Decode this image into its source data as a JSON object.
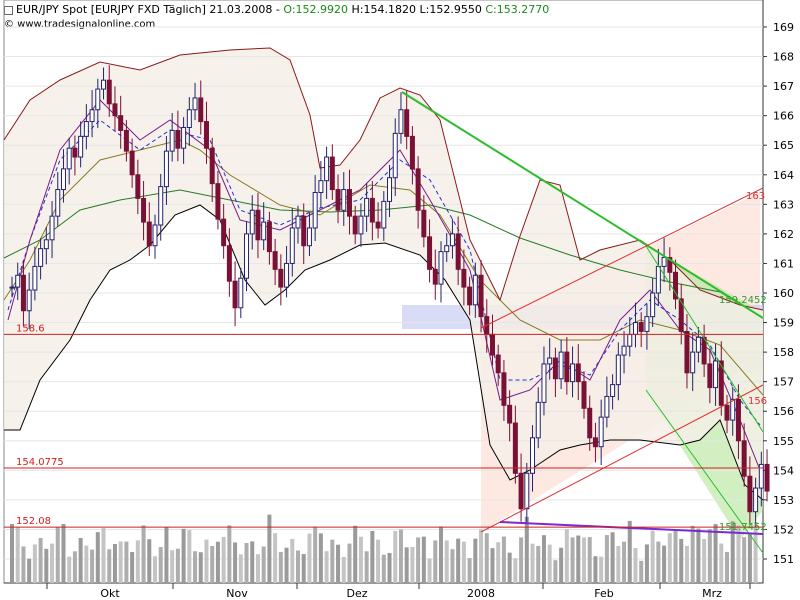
{
  "header": {
    "title": "EUR/JPY Spot [EURJPY FXD  Täglich]",
    "date": "21.03.2008",
    "open": "O:152.9920",
    "high": "H:154.1820",
    "low": "L:152.9550",
    "close": "C:153.2770",
    "copyright": "© www.tradesignalonline.com"
  },
  "chart_data": {
    "type": "candlestick",
    "y_axis_ticks": [
      "151",
      "152",
      "153",
      "154",
      "155",
      "156",
      "157",
      "158",
      "159",
      "160",
      "161",
      "162",
      "163",
      "164",
      "165",
      "166",
      "167",
      "168",
      "169"
    ],
    "x_axis_ticks": [
      "Okt",
      "Nov",
      "Dez",
      "2008",
      "Feb",
      "Mrz"
    ],
    "ylim": [
      150.5,
      169.5
    ],
    "horizontal_levels": [
      {
        "label": "158.6",
        "value": 158.6,
        "color": "#cc2222"
      },
      {
        "label": "154.0775",
        "value": 154.0775,
        "color": "#cc2222"
      },
      {
        "label": "152.08",
        "value": 152.08,
        "color": "#cc2222"
      }
    ],
    "line_labels": [
      {
        "label": "163",
        "value": 163,
        "color": "#e03030"
      },
      {
        "label": "159.2452",
        "value": 159.2452,
        "color": "#2aa02a"
      },
      {
        "label": "156",
        "value": 156,
        "color": "#e03030"
      },
      {
        "label": "151.7452",
        "value": 151.7452,
        "color": "#2aa02a"
      }
    ],
    "closes_approx": [
      160.2,
      160.6,
      159.4,
      160.1,
      160.9,
      161.5,
      161.8,
      162.6,
      163.5,
      164.2,
      164.9,
      164.6,
      165.3,
      165.8,
      166.2,
      166.9,
      167.2,
      166.4,
      166.0,
      165.5,
      164.8,
      164.0,
      163.2,
      162.4,
      161.6,
      162.3,
      163.6,
      164.8,
      165.5,
      164.9,
      165.6,
      166.2,
      166.6,
      165.8,
      164.9,
      163.7,
      162.5,
      161.6,
      160.4,
      159.5,
      160.5,
      162.0,
      162.8,
      161.8,
      162.4,
      161.4,
      160.8,
      160.2,
      161.0,
      162.2,
      162.6,
      161.6,
      162.2,
      163.4,
      163.8,
      164.6,
      163.5,
      162.8,
      163.5,
      162.6,
      162.0,
      162.6,
      163.2,
      162.4,
      162.2,
      163.1,
      163.9,
      165.4,
      166.2,
      165.3,
      164.2,
      162.8,
      161.9,
      160.8,
      160.3,
      161.4,
      161.6,
      162.0,
      160.8,
      160.2,
      159.6,
      160.6,
      159.2,
      158.6,
      157.9,
      157.3,
      156.2,
      155.6,
      153.9,
      152.7,
      153.9,
      155.1,
      156.3,
      157.6,
      157.8,
      157.1,
      158.0,
      157.0,
      157.6,
      157.0,
      156.1,
      155.1,
      154.8,
      155.8,
      156.5,
      156.9,
      157.9,
      158.2,
      158.6,
      159.0,
      158.7,
      159.2,
      160.0,
      160.9,
      161.2,
      160.7,
      159.8,
      158.7,
      157.3,
      158.0,
      158.5,
      157.6,
      156.8,
      157.7,
      156.2,
      155.7,
      156.4,
      155.0,
      153.8,
      152.6,
      153.4,
      154.2,
      153.3
    ]
  }
}
